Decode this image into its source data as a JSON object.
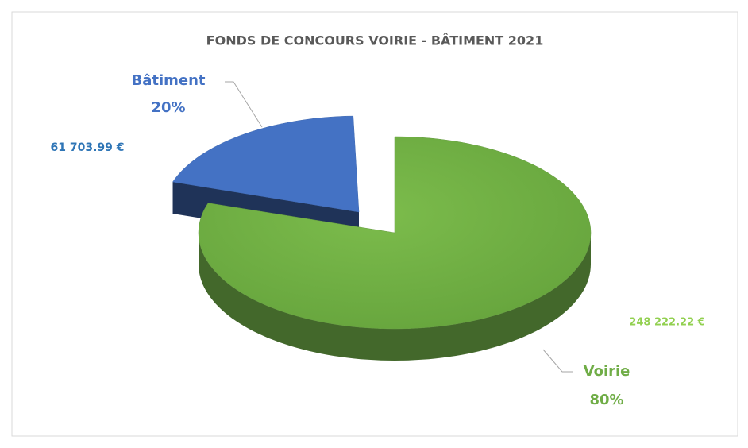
{
  "chart_data": {
    "type": "pie",
    "title": "FONDS DE CONCOURS VOIRIE - BÂTIMENT 2021",
    "categories": [
      "Bâtiment",
      "Voirie"
    ],
    "values": [
      61703.99,
      248222.22
    ],
    "value_labels": [
      "61 703.99 €",
      "248 222.22 €"
    ],
    "percent_labels": [
      "20%",
      "80%"
    ],
    "colors": [
      "#4472c4",
      "#70ad47"
    ],
    "three_d": true,
    "exploded": "Bâtiment"
  }
}
